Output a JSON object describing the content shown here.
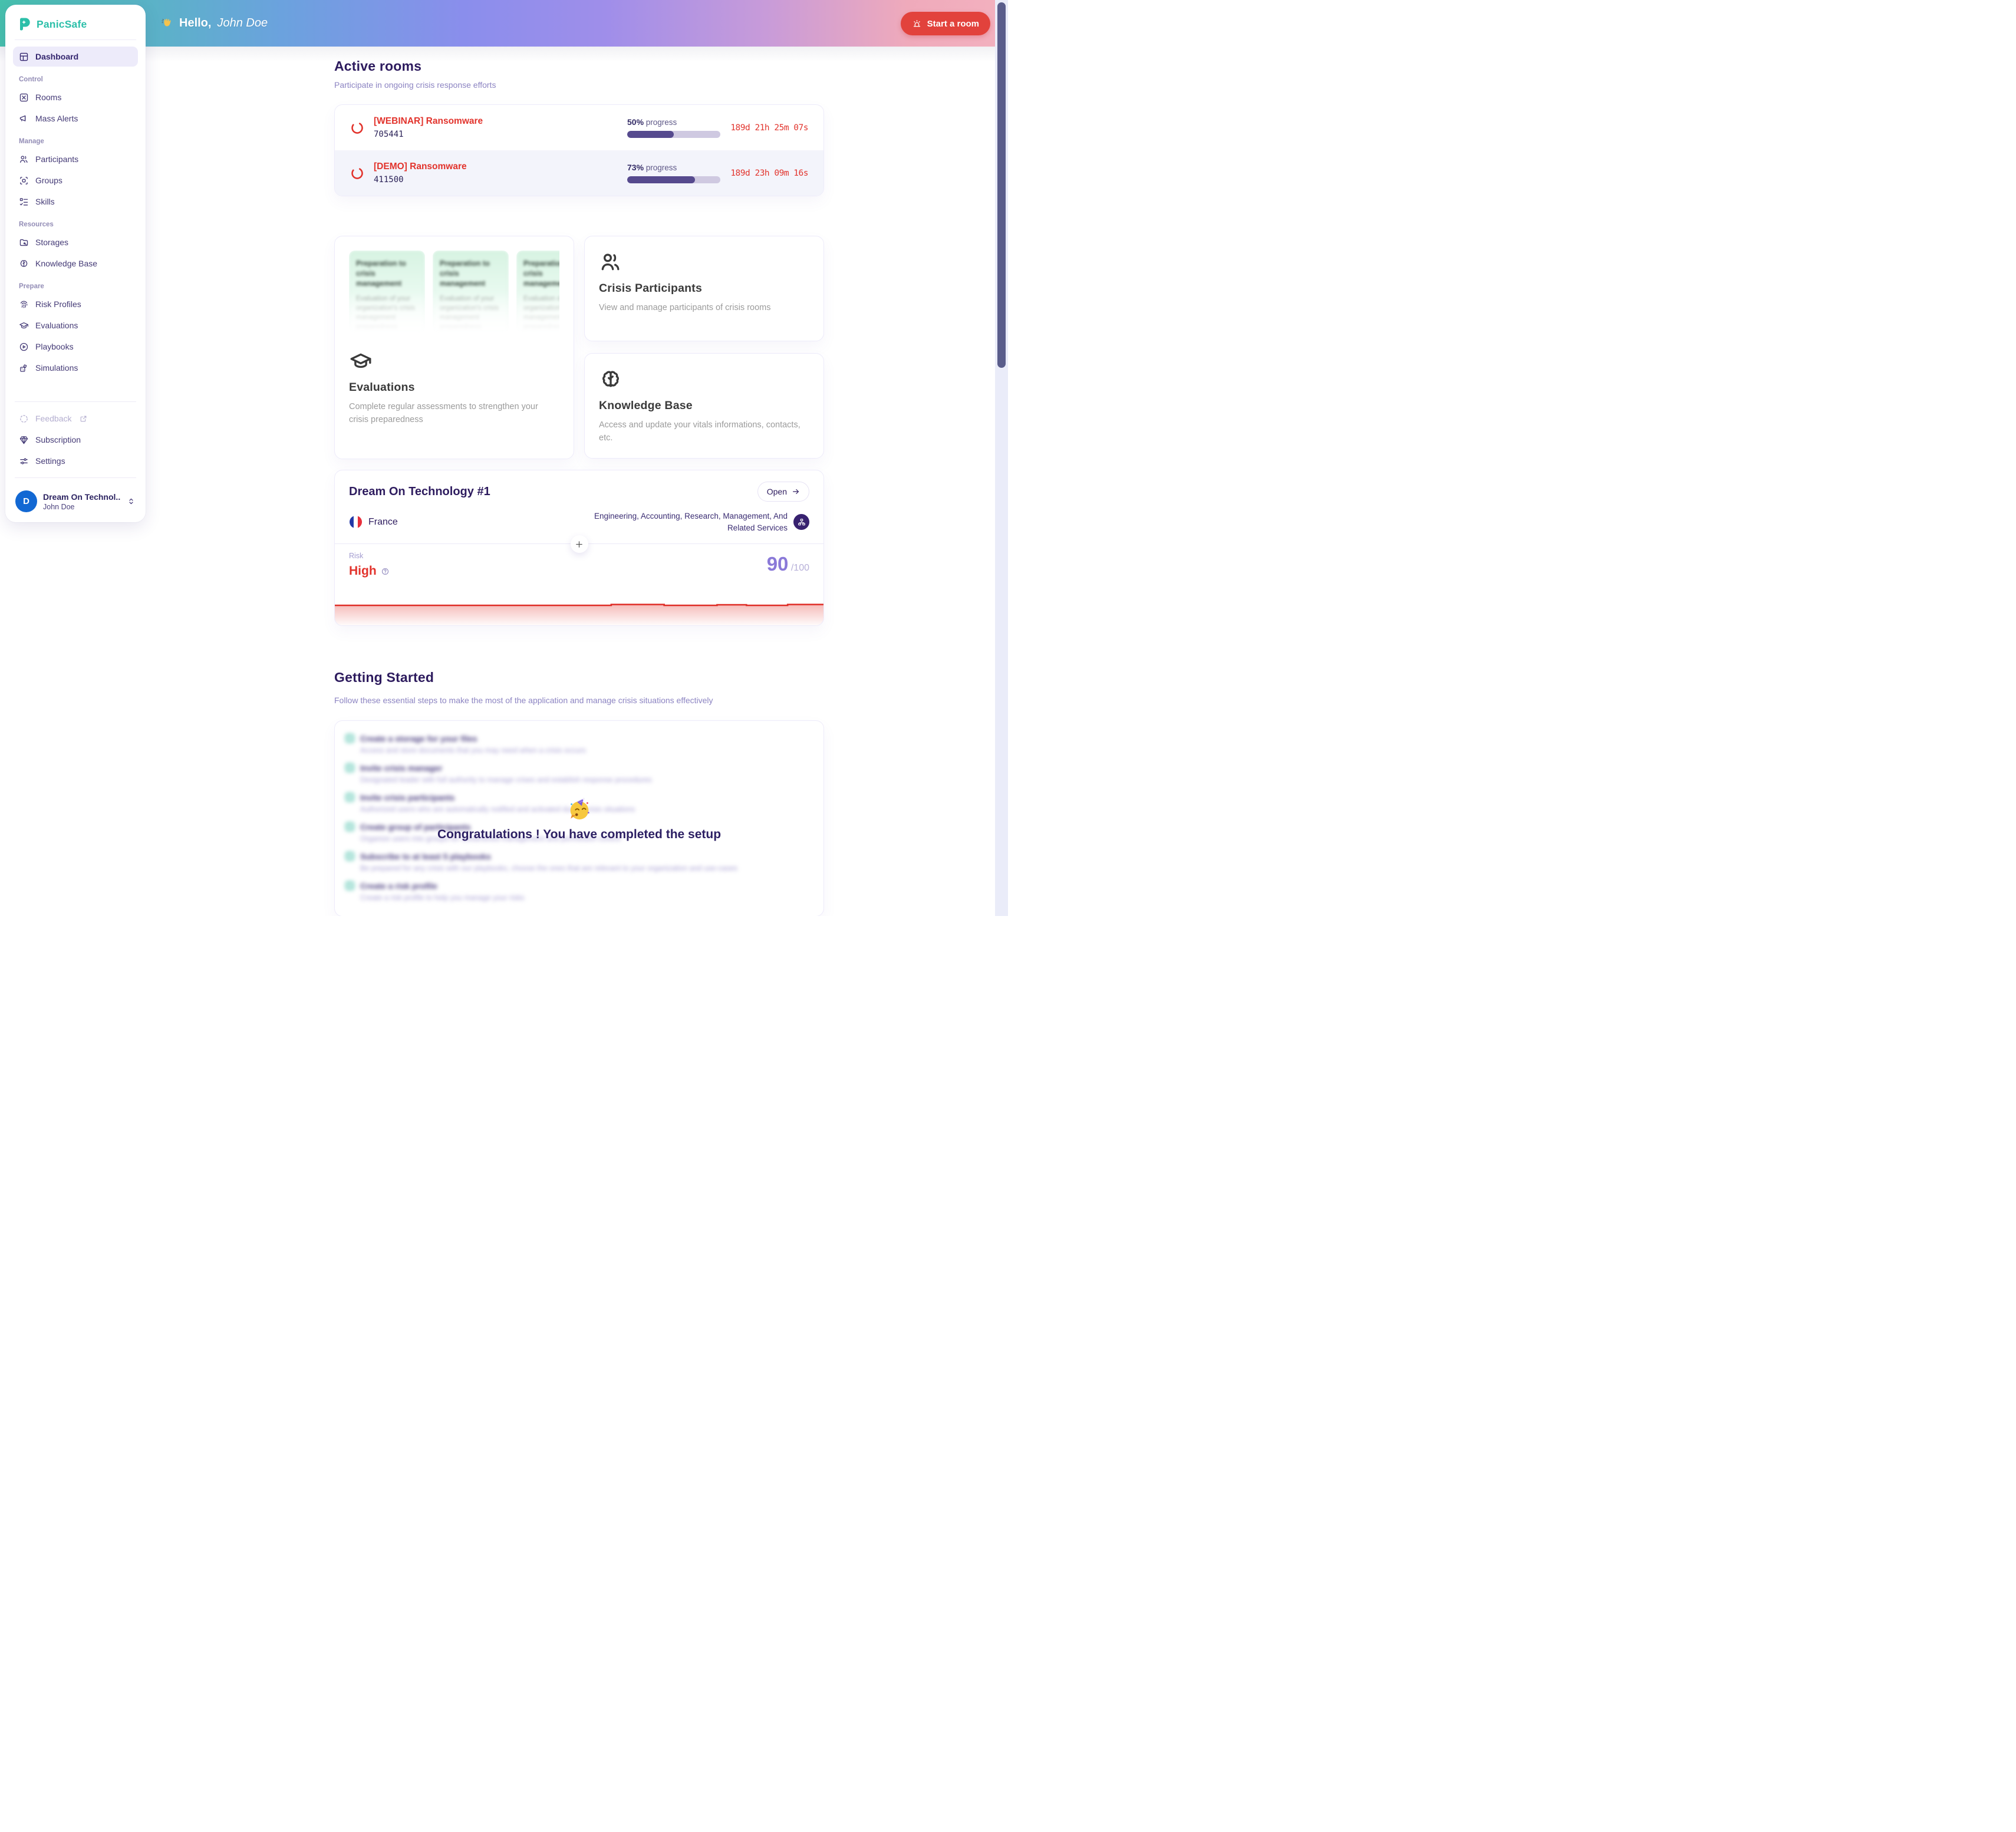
{
  "app": {
    "name": "PanicSafe"
  },
  "header": {
    "wave_emoji": "👋",
    "greeting_prefix": "Hello,",
    "user_name": "John Doe",
    "start_room_label": "Start a room"
  },
  "sidebar": {
    "dashboard_label": "Dashboard",
    "sections": [
      {
        "label": "Control",
        "items": [
          {
            "label": "Rooms"
          },
          {
            "label": "Mass Alerts"
          }
        ]
      },
      {
        "label": "Manage",
        "items": [
          {
            "label": "Participants"
          },
          {
            "label": "Groups"
          },
          {
            "label": "Skills"
          }
        ]
      },
      {
        "label": "Resources",
        "items": [
          {
            "label": "Storages"
          },
          {
            "label": "Knowledge Base"
          }
        ]
      },
      {
        "label": "Prepare",
        "items": [
          {
            "label": "Risk Profiles"
          },
          {
            "label": "Evaluations"
          },
          {
            "label": "Playbooks"
          },
          {
            "label": "Simulations"
          }
        ]
      }
    ],
    "footer": [
      {
        "label": "Feedback"
      },
      {
        "label": "Subscription"
      },
      {
        "label": "Settings"
      }
    ],
    "account": {
      "initial": "D",
      "org": "Dream On Technol...",
      "user": "John Doe"
    }
  },
  "active_rooms": {
    "title": "Active rooms",
    "subtitle": "Participate in ongoing crisis response efforts",
    "rooms": [
      {
        "name": "[WEBINAR] Ransomware",
        "id": "705441",
        "progress_value": "50%",
        "progress_suffix": " progress",
        "progress_pct": 50,
        "timer": "189d 21h 25m 07s"
      },
      {
        "name": "[DEMO] Ransomware",
        "id": "411500",
        "progress_value": "73%",
        "progress_suffix": " progress",
        "progress_pct": 73,
        "timer": "189d 23h 09m 16s"
      }
    ]
  },
  "feature_cards": {
    "evaluations": {
      "title": "Evaluations",
      "subtitle": "Complete regular assessments to strengthen your crisis preparedness",
      "preview": {
        "title": "Preparation to crisis management",
        "body": "Evaluation of your organization's crisis management preparedness"
      }
    },
    "crisis_participants": {
      "title": "Crisis Participants",
      "subtitle": "View and manage participants of crisis rooms"
    },
    "knowledge_base": {
      "title": "Knowledge Base",
      "subtitle": "Access and update your vitals informations, contacts, etc."
    }
  },
  "org_card": {
    "title": "Dream On Technology #1",
    "open_label": "Open",
    "country": "France",
    "industry": "Engineering, Accounting, Research, Management, And Related Services",
    "risk_label": "Risk",
    "risk_level": "High",
    "risk_score": "90",
    "risk_score_max": "/100"
  },
  "getting_started": {
    "title": "Getting Started",
    "subtitle": "Follow these essential steps to make the most of the application and manage crisis situations effectively",
    "steps": [
      {
        "title": "Create a storage for your files",
        "description": "Access and store documents that you may need when a crisis occurs"
      },
      {
        "title": "Invite crisis manager",
        "description": "Designated leader with full authority to manage crises and establish response procedures"
      },
      {
        "title": "Invite crisis participants",
        "description": "Authorized users who are automatically notified and activated during crisis situations"
      },
      {
        "title": "Create group of participants",
        "description": "Organize users into groups for streamlined management and permission control"
      },
      {
        "title": "Subscribe to at least 5 playbooks",
        "description": "Be prepared for any crisis with our playbooks, choose the ones that are relevant to your organization and use-cases"
      },
      {
        "title": "Create a risk profile",
        "description": "Create a risk profile to help you manage your risks"
      }
    ],
    "congrats": {
      "emoji": "🥳",
      "message": "Congratulations ! You have completed the setup"
    }
  },
  "colors": {
    "brand_teal": "#2cbfa9",
    "alert_red": "#e2423c",
    "progress_purple": "#564a8e",
    "title_indigo": "#2d1b5e",
    "score_purple": "#8a79d8",
    "avatar_blue": "#1268d3"
  }
}
